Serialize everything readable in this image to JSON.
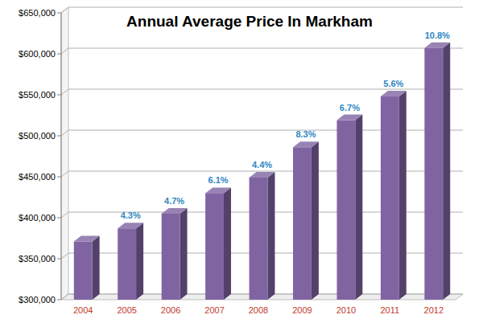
{
  "chart_data": {
    "type": "bar",
    "title": "Annual Average Price In Markham",
    "categories": [
      "2004",
      "2005",
      "2006",
      "2007",
      "2008",
      "2009",
      "2010",
      "2011",
      "2012"
    ],
    "values": [
      371000,
      387000,
      405000,
      430000,
      449000,
      486000,
      519000,
      548000,
      607000
    ],
    "annotations": [
      null,
      "4.3%",
      "4.7%",
      "6.1%",
      "4.4%",
      "8.3%",
      "6.7%",
      "5.6%",
      "10.8%"
    ],
    "color": "#8064a2",
    "ylim": [
      300000,
      650000
    ],
    "yticks": [
      {
        "value": 300000,
        "label": "$300,000"
      },
      {
        "value": 350000,
        "label": "$350,000"
      },
      {
        "value": 400000,
        "label": "$400,000"
      },
      {
        "value": 450000,
        "label": "$450,000"
      },
      {
        "value": 500000,
        "label": "$500,000"
      },
      {
        "value": 550000,
        "label": "$550,000"
      },
      {
        "value": 600000,
        "label": "$600,000"
      },
      {
        "value": 650000,
        "label": "$650,000"
      }
    ],
    "grid": true
  }
}
